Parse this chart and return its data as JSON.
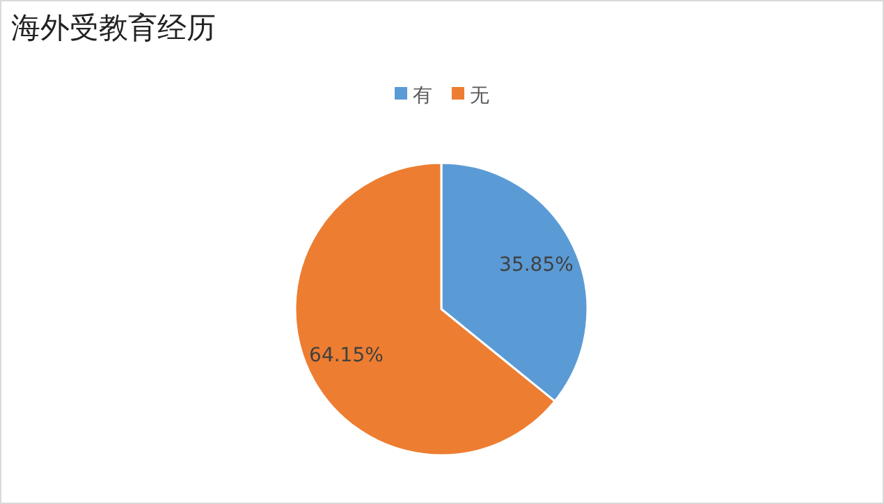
{
  "chart_data": {
    "type": "pie",
    "title": "海外受教育经历",
    "categories": [
      "有",
      "无"
    ],
    "values": [
      35.85,
      64.15
    ],
    "colors": [
      "#5b9bd5",
      "#ed7d31"
    ],
    "value_labels": [
      "35.85%",
      "64.15%"
    ],
    "legend": "top"
  }
}
